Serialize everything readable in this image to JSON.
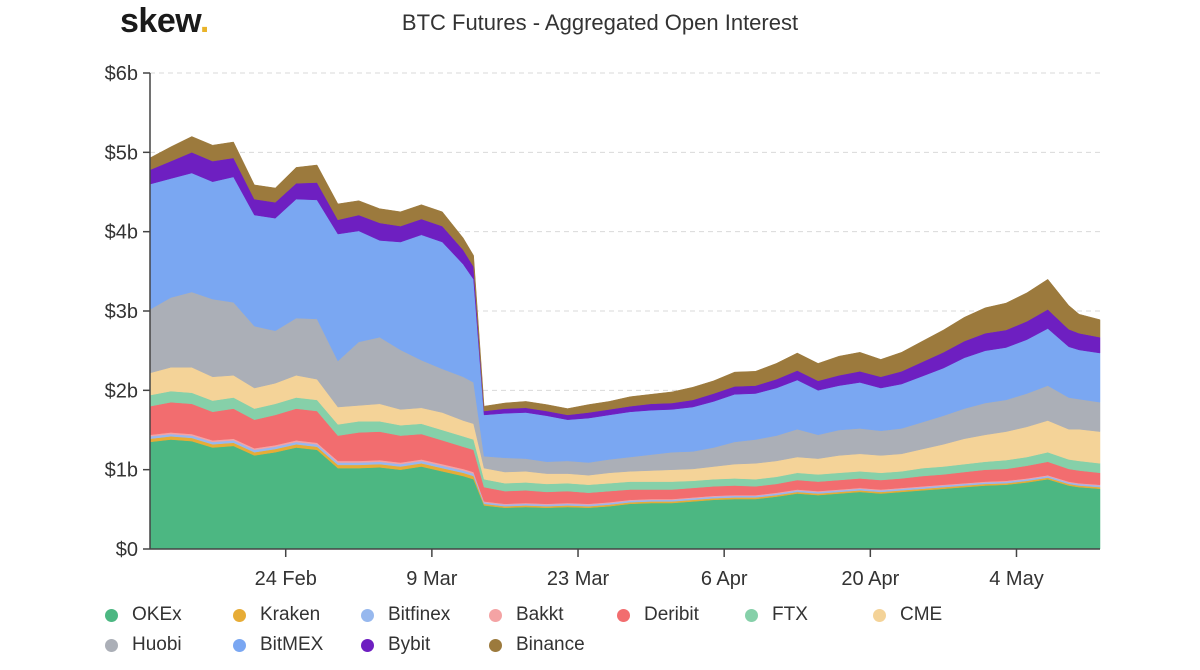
{
  "brand": {
    "name": "skew",
    "dot": "."
  },
  "chart_data": {
    "type": "area",
    "stacked": true,
    "title": "BTC Futures - Aggregated Open Interest",
    "xlabel": "",
    "ylabel": "",
    "ylim": [
      0,
      6
    ],
    "yticks": [
      0,
      1,
      2,
      3,
      4,
      5,
      6
    ],
    "ytick_labels": [
      "$0",
      "$1b",
      "$2b",
      "$3b",
      "$4b",
      "$5b",
      "$6b"
    ],
    "x_range": [
      0,
      91
    ],
    "xticks": [
      {
        "day": 13,
        "label": "24 Feb"
      },
      {
        "day": 27,
        "label": "9 Mar"
      },
      {
        "day": 41,
        "label": "23 Mar"
      },
      {
        "day": 55,
        "label": "6 Apr"
      },
      {
        "day": 69,
        "label": "20 Apr"
      },
      {
        "day": 83,
        "label": "4 May"
      }
    ],
    "x": [
      0,
      2,
      4,
      6,
      8,
      10,
      12,
      14,
      16,
      18,
      20,
      22,
      24,
      26,
      28,
      30,
      31,
      32,
      34,
      36,
      38,
      40,
      42,
      44,
      46,
      48,
      50,
      52,
      54,
      56,
      58,
      60,
      62,
      64,
      66,
      68,
      70,
      72,
      74,
      76,
      78,
      80,
      82,
      84,
      86,
      88,
      89,
      91
    ],
    "series": [
      {
        "name": "OKEx",
        "color": "#4cb782",
        "values": [
          1.35,
          1.38,
          1.36,
          1.28,
          1.3,
          1.18,
          1.22,
          1.28,
          1.25,
          1.02,
          1.02,
          1.03,
          1.0,
          1.04,
          0.98,
          0.92,
          0.88,
          0.55,
          0.52,
          0.53,
          0.52,
          0.53,
          0.52,
          0.54,
          0.57,
          0.58,
          0.58,
          0.6,
          0.62,
          0.63,
          0.63,
          0.66,
          0.7,
          0.68,
          0.7,
          0.72,
          0.7,
          0.72,
          0.74,
          0.76,
          0.78,
          0.8,
          0.81,
          0.84,
          0.88,
          0.8,
          0.78,
          0.76
        ]
      },
      {
        "name": "Kraken",
        "color": "#e7ac36",
        "values": [
          0.04,
          0.04,
          0.04,
          0.04,
          0.04,
          0.04,
          0.04,
          0.04,
          0.04,
          0.04,
          0.04,
          0.04,
          0.04,
          0.04,
          0.04,
          0.04,
          0.04,
          0.02,
          0.02,
          0.02,
          0.02,
          0.02,
          0.02,
          0.02,
          0.02,
          0.02,
          0.02,
          0.02,
          0.02,
          0.02,
          0.02,
          0.02,
          0.02,
          0.02,
          0.02,
          0.02,
          0.02,
          0.02,
          0.02,
          0.02,
          0.02,
          0.02,
          0.02,
          0.02,
          0.02,
          0.02,
          0.02,
          0.02
        ]
      },
      {
        "name": "Bitfinex",
        "color": "#97b8ee",
        "values": [
          0.03,
          0.03,
          0.03,
          0.03,
          0.03,
          0.03,
          0.03,
          0.03,
          0.03,
          0.03,
          0.03,
          0.03,
          0.03,
          0.03,
          0.03,
          0.03,
          0.03,
          0.02,
          0.02,
          0.02,
          0.02,
          0.02,
          0.02,
          0.02,
          0.02,
          0.02,
          0.02,
          0.02,
          0.02,
          0.02,
          0.02,
          0.02,
          0.02,
          0.02,
          0.02,
          0.02,
          0.02,
          0.02,
          0.02,
          0.02,
          0.02,
          0.02,
          0.02,
          0.02,
          0.02,
          0.02,
          0.02,
          0.02
        ]
      },
      {
        "name": "Bakkt",
        "color": "#f4a3a4",
        "values": [
          0.02,
          0.02,
          0.02,
          0.02,
          0.02,
          0.02,
          0.02,
          0.02,
          0.02,
          0.02,
          0.02,
          0.02,
          0.02,
          0.02,
          0.02,
          0.02,
          0.02,
          0.01,
          0.01,
          0.01,
          0.01,
          0.01,
          0.01,
          0.01,
          0.01,
          0.01,
          0.01,
          0.01,
          0.01,
          0.01,
          0.01,
          0.01,
          0.01,
          0.01,
          0.01,
          0.01,
          0.01,
          0.01,
          0.01,
          0.01,
          0.01,
          0.01,
          0.01,
          0.01,
          0.01,
          0.01,
          0.01,
          0.01
        ]
      },
      {
        "name": "Deribit",
        "color": "#f26d6f",
        "values": [
          0.36,
          0.38,
          0.38,
          0.36,
          0.38,
          0.36,
          0.38,
          0.4,
          0.4,
          0.32,
          0.36,
          0.36,
          0.34,
          0.32,
          0.3,
          0.28,
          0.28,
          0.18,
          0.16,
          0.16,
          0.15,
          0.15,
          0.14,
          0.14,
          0.13,
          0.12,
          0.12,
          0.12,
          0.12,
          0.12,
          0.11,
          0.11,
          0.12,
          0.12,
          0.12,
          0.12,
          0.12,
          0.12,
          0.13,
          0.13,
          0.14,
          0.15,
          0.15,
          0.16,
          0.17,
          0.16,
          0.16,
          0.15
        ]
      },
      {
        "name": "FTX",
        "color": "#86d0a9",
        "values": [
          0.14,
          0.14,
          0.14,
          0.14,
          0.14,
          0.14,
          0.14,
          0.14,
          0.14,
          0.14,
          0.14,
          0.13,
          0.13,
          0.13,
          0.13,
          0.13,
          0.13,
          0.1,
          0.1,
          0.1,
          0.1,
          0.1,
          0.1,
          0.1,
          0.1,
          0.1,
          0.1,
          0.09,
          0.09,
          0.09,
          0.09,
          0.09,
          0.09,
          0.09,
          0.09,
          0.09,
          0.09,
          0.09,
          0.1,
          0.1,
          0.1,
          0.1,
          0.11,
          0.11,
          0.12,
          0.12,
          0.12,
          0.12
        ]
      },
      {
        "name": "CME",
        "color": "#f4d398",
        "values": [
          0.28,
          0.3,
          0.32,
          0.3,
          0.28,
          0.26,
          0.26,
          0.28,
          0.26,
          0.22,
          0.2,
          0.22,
          0.2,
          0.2,
          0.22,
          0.2,
          0.2,
          0.14,
          0.14,
          0.14,
          0.13,
          0.12,
          0.12,
          0.13,
          0.13,
          0.14,
          0.15,
          0.15,
          0.16,
          0.18,
          0.2,
          0.2,
          0.2,
          0.2,
          0.22,
          0.22,
          0.22,
          0.22,
          0.24,
          0.28,
          0.32,
          0.34,
          0.36,
          0.38,
          0.4,
          0.38,
          0.4,
          0.4
        ]
      },
      {
        "name": "Huobi",
        "color": "#abafb7",
        "values": [
          0.8,
          0.88,
          0.95,
          0.98,
          0.92,
          0.78,
          0.66,
          0.72,
          0.76,
          0.58,
          0.8,
          0.84,
          0.75,
          0.6,
          0.55,
          0.55,
          0.52,
          0.15,
          0.18,
          0.16,
          0.15,
          0.16,
          0.16,
          0.17,
          0.18,
          0.2,
          0.22,
          0.22,
          0.24,
          0.28,
          0.3,
          0.32,
          0.35,
          0.3,
          0.32,
          0.32,
          0.31,
          0.32,
          0.34,
          0.36,
          0.38,
          0.4,
          0.4,
          0.42,
          0.44,
          0.4,
          0.38,
          0.37
        ]
      },
      {
        "name": "BitMEX",
        "color": "#7aa7f2",
        "values": [
          1.58,
          1.5,
          1.5,
          1.48,
          1.58,
          1.4,
          1.42,
          1.5,
          1.5,
          1.6,
          1.4,
          1.22,
          1.36,
          1.58,
          1.6,
          1.42,
          1.3,
          0.52,
          0.56,
          0.58,
          0.58,
          0.52,
          0.56,
          0.56,
          0.57,
          0.56,
          0.54,
          0.56,
          0.58,
          0.6,
          0.58,
          0.6,
          0.62,
          0.56,
          0.56,
          0.58,
          0.54,
          0.56,
          0.58,
          0.6,
          0.64,
          0.66,
          0.66,
          0.68,
          0.72,
          0.64,
          0.62,
          0.62
        ]
      },
      {
        "name": "Bybit",
        "color": "#6e1fc1",
        "values": [
          0.18,
          0.22,
          0.26,
          0.26,
          0.24,
          0.2,
          0.2,
          0.2,
          0.22,
          0.18,
          0.2,
          0.22,
          0.2,
          0.2,
          0.2,
          0.18,
          0.16,
          0.05,
          0.06,
          0.06,
          0.06,
          0.06,
          0.07,
          0.07,
          0.07,
          0.08,
          0.08,
          0.09,
          0.1,
          0.1,
          0.1,
          0.11,
          0.12,
          0.12,
          0.13,
          0.14,
          0.14,
          0.16,
          0.18,
          0.2,
          0.21,
          0.22,
          0.22,
          0.23,
          0.24,
          0.22,
          0.21,
          0.2
        ]
      },
      {
        "name": "Binance",
        "color": "#9c7a3d",
        "values": [
          0.15,
          0.18,
          0.2,
          0.2,
          0.2,
          0.18,
          0.18,
          0.2,
          0.22,
          0.2,
          0.18,
          0.18,
          0.18,
          0.18,
          0.18,
          0.15,
          0.14,
          0.06,
          0.07,
          0.08,
          0.08,
          0.08,
          0.1,
          0.1,
          0.12,
          0.12,
          0.14,
          0.16,
          0.16,
          0.18,
          0.18,
          0.2,
          0.22,
          0.22,
          0.24,
          0.24,
          0.22,
          0.24,
          0.26,
          0.28,
          0.3,
          0.32,
          0.34,
          0.36,
          0.38,
          0.3,
          0.24,
          0.22
        ]
      }
    ],
    "legend": {
      "placement": "bottom",
      "rows": [
        [
          "OKEx",
          "Kraken",
          "Bitfinex",
          "Bakkt",
          "Deribit",
          "FTX",
          "CME"
        ],
        [
          "Huobi",
          "BitMEX",
          "Bybit",
          "Binance"
        ]
      ]
    }
  }
}
